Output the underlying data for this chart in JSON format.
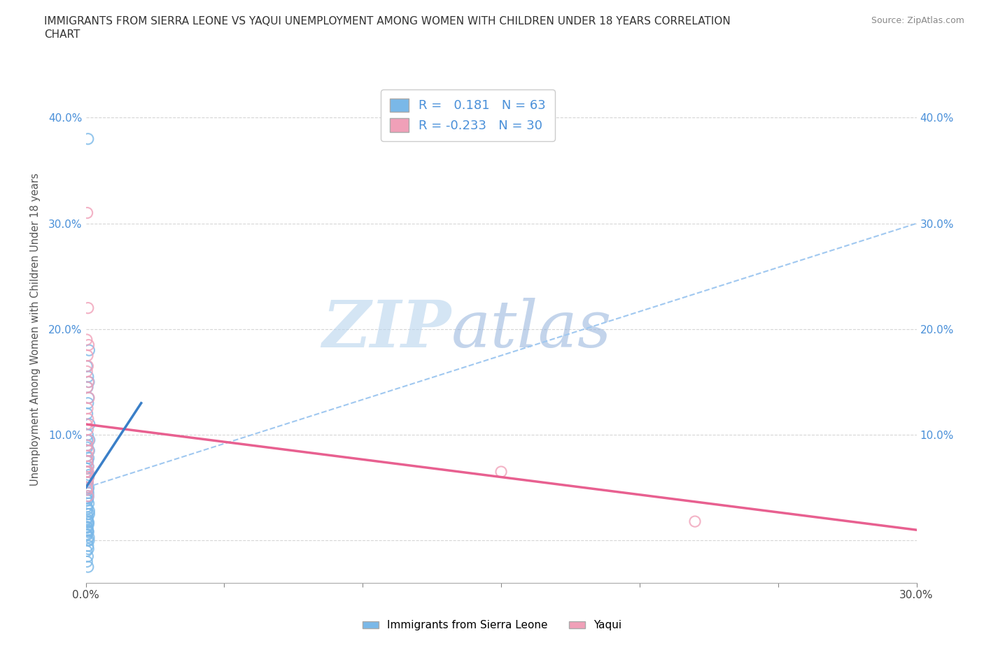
{
  "title_line1": "IMMIGRANTS FROM SIERRA LEONE VS YAQUI UNEMPLOYMENT AMONG WOMEN WITH CHILDREN UNDER 18 YEARS CORRELATION",
  "title_line2": "CHART",
  "source": "Source: ZipAtlas.com",
  "ylabel": "Unemployment Among Women with Children Under 18 years",
  "xlim": [
    0.0,
    0.3
  ],
  "ylim": [
    -0.04,
    0.44
  ],
  "xticks": [
    0.0,
    0.05,
    0.1,
    0.15,
    0.2,
    0.25,
    0.3
  ],
  "xticklabels": [
    "0.0%",
    "",
    "",
    "",
    "",
    "",
    "30.0%"
  ],
  "yticks": [
    0.0,
    0.1,
    0.2,
    0.3,
    0.4
  ],
  "yticklabels_left": [
    "",
    "10.0%",
    "20.0%",
    "30.0%",
    "40.0%"
  ],
  "yticklabels_right": [
    "",
    "10.0%",
    "20.0%",
    "30.0%",
    "40.0%"
  ],
  "blue_color": "#7ab8e8",
  "pink_color": "#f0a0b8",
  "trend_blue_color": "#3a7fc8",
  "trend_pink_color": "#e86090",
  "trend_blue_dashed_color": "#a0c8f0",
  "R_blue": 0.181,
  "N_blue": 63,
  "R_pink": -0.233,
  "N_pink": 30,
  "watermark_zip": "ZIP",
  "watermark_atlas": "atlas",
  "legend_labels": [
    "Immigrants from Sierra Leone",
    "Yaqui"
  ],
  "blue_points_x": [
    0.0008,
    0.0005,
    0.0012,
    0.0006,
    0.0003,
    0.001,
    0.0007,
    0.0004,
    0.0009,
    0.0002,
    0.0011,
    0.0008,
    0.0005,
    0.0013,
    0.0007,
    0.0006,
    0.0004,
    0.0009,
    0.0003,
    0.001,
    0.0008,
    0.0006,
    0.0012,
    0.0005,
    0.0009,
    0.0007,
    0.0004,
    0.0011,
    0.0008,
    0.0003,
    0.001,
    0.0006,
    0.0007,
    0.0005,
    0.0009,
    0.0012,
    0.0004,
    0.0008,
    0.0006,
    0.001,
    0.0007,
    0.0003,
    0.0011,
    0.0005,
    0.0008,
    0.0009,
    0.0006,
    0.0004,
    0.0012,
    0.0007,
    0.001,
    0.0005,
    0.0008,
    0.0003,
    0.0011,
    0.0006,
    0.0009,
    0.0007,
    0.0004,
    0.0008,
    0.0013,
    0.0005,
    0.001
  ],
  "blue_points_y": [
    0.38,
    0.095,
    0.085,
    0.075,
    0.065,
    0.06,
    0.055,
    0.05,
    0.045,
    0.04,
    0.15,
    0.13,
    0.12,
    0.11,
    0.1,
    0.09,
    0.08,
    0.07,
    0.06,
    0.05,
    0.04,
    0.03,
    0.025,
    0.02,
    0.015,
    0.01,
    0.005,
    0.0,
    -0.005,
    -0.01,
    0.035,
    0.025,
    0.018,
    0.012,
    0.008,
    0.18,
    0.165,
    0.155,
    0.145,
    0.135,
    0.075,
    0.068,
    0.062,
    0.055,
    0.048,
    0.042,
    0.038,
    0.032,
    0.028,
    0.022,
    0.017,
    0.013,
    0.009,
    0.006,
    0.003,
    0.0,
    -0.008,
    -0.015,
    -0.02,
    -0.025,
    0.095,
    0.088,
    0.078
  ],
  "pink_points_x": [
    0.0005,
    0.0008,
    0.0003,
    0.001,
    0.0006,
    0.0007,
    0.0004,
    0.0009,
    0.0005,
    0.0011,
    0.0006,
    0.0008,
    0.0003,
    0.0007,
    0.001,
    0.0004,
    0.0009,
    0.0006,
    0.0005,
    0.0008,
    0.0003,
    0.001,
    0.0007,
    0.0004,
    0.0009,
    0.0006,
    0.0005,
    0.0008,
    0.15,
    0.22
  ],
  "pink_points_y": [
    0.31,
    0.22,
    0.19,
    0.185,
    0.175,
    0.165,
    0.16,
    0.15,
    0.145,
    0.135,
    0.125,
    0.115,
    0.11,
    0.105,
    0.095,
    0.09,
    0.085,
    0.08,
    0.075,
    0.07,
    0.065,
    0.06,
    0.055,
    0.05,
    0.065,
    0.058,
    0.048,
    0.042,
    0.065,
    0.018
  ],
  "blue_solid_trend_x": [
    0.0,
    0.02
  ],
  "blue_solid_trend_y": [
    0.05,
    0.13
  ],
  "blue_dash_trend_x": [
    0.0,
    0.3
  ],
  "blue_dash_trend_y": [
    0.05,
    0.3
  ],
  "pink_trend_x": [
    0.0,
    0.3
  ],
  "pink_trend_y": [
    0.11,
    0.01
  ]
}
